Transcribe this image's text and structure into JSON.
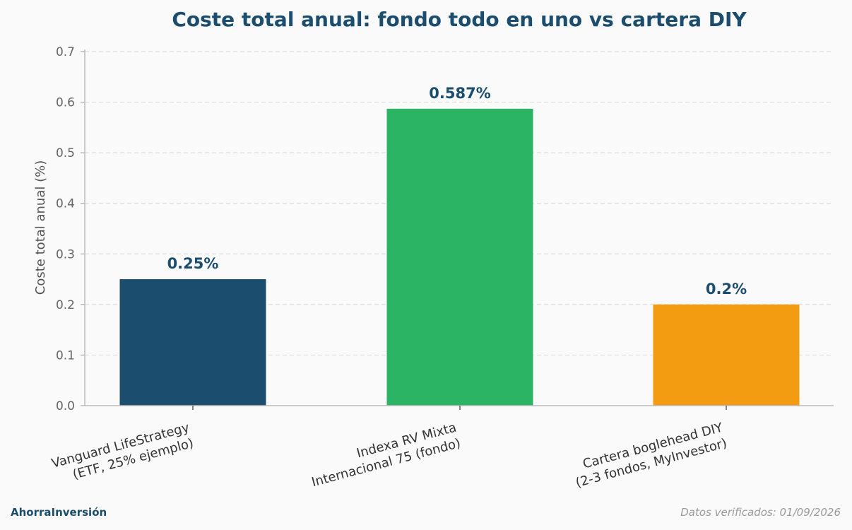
{
  "chart_data": {
    "type": "bar",
    "title": "Coste total anual: fondo todo en uno vs cartera DIY",
    "ylabel": "Coste total anual (%)",
    "xlabel": "",
    "ylim": [
      0,
      0.7
    ],
    "yticks": [
      "0.0",
      "0.1",
      "0.2",
      "0.3",
      "0.4",
      "0.5",
      "0.6",
      "0.7"
    ],
    "grid": true,
    "categories": [
      [
        "Vanguard LifeStrategy",
        "(ETF, 25% ejemplo)"
      ],
      [
        "Indexa RV Mixta",
        "Internacional 75 (fondo)"
      ],
      [
        "Cartera boglehead DIY",
        "(2-3 fondos, MyInvestor)"
      ]
    ],
    "values": [
      0.25,
      0.587,
      0.2
    ],
    "value_labels": [
      "0.25%",
      "0.587%",
      "0.2%"
    ],
    "colors": [
      "#1b4d6e",
      "#2bb463",
      "#f39c12"
    ]
  },
  "footer": {
    "brand": "AhorraInversión",
    "verified": "Datos verificados: 01/09/2026"
  }
}
